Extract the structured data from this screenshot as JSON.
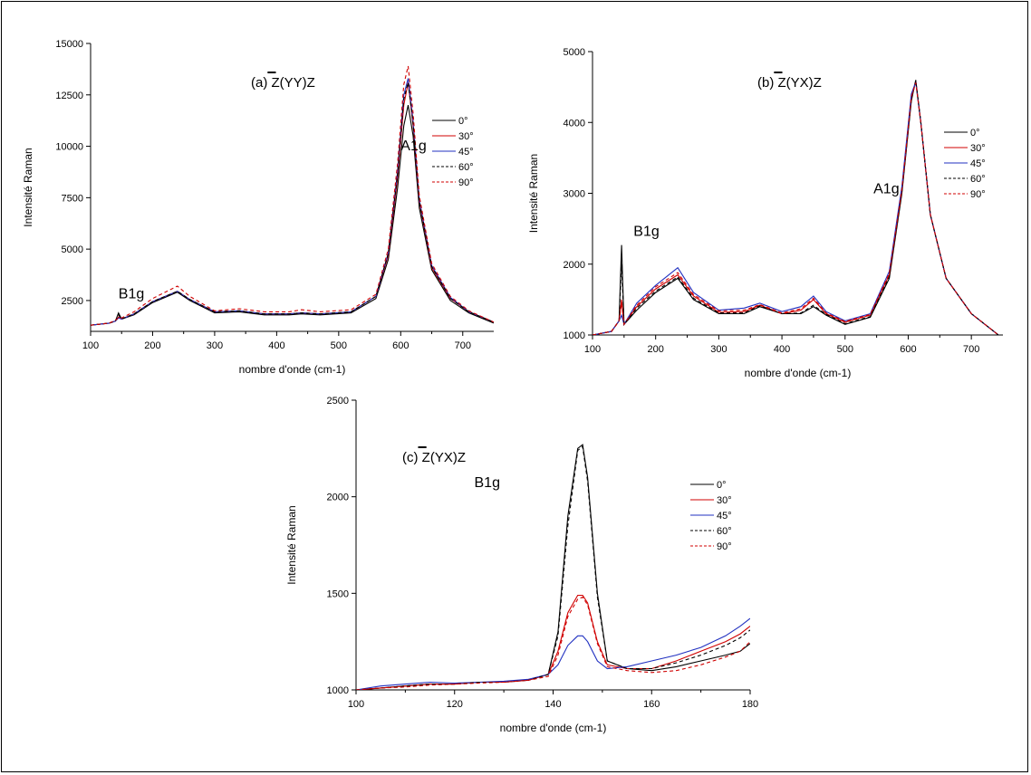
{
  "colors": {
    "0deg": "#000000",
    "30deg": "#d00000",
    "45deg": "#2030c0",
    "60deg": "#000000",
    "90deg": "#d00000"
  },
  "chart_data": [
    {
      "type": "line",
      "title_prefix": "(a) ",
      "title_main": "Z(YY)Z",
      "title_overbar_char": "Z",
      "xlabel": "nombre d'onde (cm-1)",
      "ylabel": "Intensité Raman",
      "xlim": [
        100,
        750
      ],
      "ylim": [
        1000,
        15000
      ],
      "xticks": [
        100,
        200,
        300,
        400,
        500,
        600,
        700
      ],
      "yticks": [
        2500,
        5000,
        7500,
        10000,
        12500,
        15000
      ],
      "peak_labels": [
        {
          "text": "B1g",
          "x": 145,
          "y": 2600
        },
        {
          "text": "A1g",
          "x": 600,
          "y": 9800
        }
      ],
      "legend": [
        "0°",
        "30°",
        "45°",
        "60°",
        "90°"
      ],
      "series": [
        {
          "name": "0°",
          "style": "solid",
          "color": "#000000",
          "x": [
            100,
            130,
            140,
            145,
            150,
            170,
            200,
            240,
            260,
            300,
            340,
            380,
            420,
            440,
            470,
            520,
            560,
            580,
            595,
            605,
            612,
            620,
            630,
            650,
            680,
            710,
            750
          ],
          "y": [
            1300,
            1400,
            1500,
            1900,
            1600,
            1800,
            2400,
            2900,
            2500,
            1900,
            1950,
            1800,
            1800,
            1850,
            1800,
            1900,
            2600,
            4500,
            8000,
            11000,
            12000,
            10500,
            7000,
            4000,
            2500,
            1900,
            1400
          ]
        },
        {
          "name": "30°",
          "style": "solid",
          "color": "#d00000",
          "x": [
            100,
            130,
            140,
            145,
            150,
            170,
            200,
            240,
            260,
            300,
            340,
            380,
            420,
            440,
            470,
            520,
            560,
            580,
            595,
            605,
            612,
            620,
            630,
            650,
            680,
            710,
            750
          ],
          "y": [
            1300,
            1400,
            1500,
            1700,
            1600,
            1850,
            2450,
            2950,
            2550,
            1950,
            2000,
            1850,
            1850,
            1900,
            1850,
            1950,
            2700,
            4700,
            8500,
            12000,
            13100,
            11000,
            7300,
            4100,
            2600,
            1950,
            1450
          ]
        },
        {
          "name": "45°",
          "style": "solid",
          "color": "#2030c0",
          "x": [
            100,
            130,
            140,
            145,
            150,
            170,
            200,
            240,
            260,
            300,
            340,
            380,
            420,
            440,
            470,
            520,
            560,
            580,
            595,
            605,
            612,
            620,
            630,
            650,
            680,
            710,
            750
          ],
          "y": [
            1300,
            1400,
            1500,
            1650,
            1600,
            1850,
            2450,
            2950,
            2550,
            1950,
            2000,
            1850,
            1850,
            1900,
            1850,
            1950,
            2700,
            4800,
            8800,
            12500,
            13300,
            11200,
            7400,
            4200,
            2650,
            1950,
            1450
          ]
        },
        {
          "name": "60°",
          "style": "dashed",
          "color": "#000000",
          "x": [
            100,
            130,
            140,
            145,
            150,
            170,
            200,
            240,
            260,
            300,
            340,
            380,
            420,
            440,
            470,
            520,
            560,
            580,
            595,
            605,
            612,
            620,
            630,
            650,
            680,
            710,
            750
          ],
          "y": [
            1300,
            1400,
            1500,
            1800,
            1600,
            1850,
            2450,
            2950,
            2550,
            1950,
            2000,
            1850,
            1850,
            1900,
            1850,
            1950,
            2700,
            4800,
            8700,
            12300,
            13100,
            11100,
            7350,
            4150,
            2600,
            1950,
            1450
          ]
        },
        {
          "name": "90°",
          "style": "dashed",
          "color": "#d00000",
          "x": [
            100,
            130,
            140,
            145,
            150,
            170,
            200,
            240,
            260,
            300,
            340,
            380,
            420,
            440,
            470,
            520,
            560,
            580,
            595,
            605,
            612,
            620,
            630,
            650,
            680,
            710,
            750
          ],
          "y": [
            1300,
            1400,
            1550,
            1650,
            1650,
            1950,
            2600,
            3200,
            2700,
            2000,
            2100,
            1950,
            1950,
            2050,
            1950,
            2050,
            2800,
            5000,
            9200,
            13000,
            13900,
            11600,
            7600,
            4300,
            2700,
            2000,
            1450
          ]
        }
      ]
    },
    {
      "type": "line",
      "title_prefix": "(b) ",
      "title_main": "Z(YX)Z",
      "title_overbar_char": "Z",
      "xlabel": "nombre d'onde (cm-1)",
      "ylabel": "Intensité Raman",
      "xlim": [
        100,
        750
      ],
      "ylim": [
        1000,
        5000
      ],
      "xticks": [
        100,
        200,
        300,
        400,
        500,
        600,
        700
      ],
      "yticks": [
        1000,
        2000,
        3000,
        4000,
        5000
      ],
      "peak_labels": [
        {
          "text": "B1g",
          "x": 165,
          "y": 2400
        },
        {
          "text": "A1g",
          "x": 545,
          "y": 3000
        }
      ],
      "legend": [
        "0°",
        "30°",
        "45°",
        "60°",
        "90°"
      ],
      "series": [
        {
          "name": "0°",
          "style": "solid",
          "color": "#000000",
          "x": [
            100,
            130,
            142,
            146,
            150,
            170,
            200,
            235,
            260,
            300,
            340,
            365,
            400,
            430,
            450,
            470,
            500,
            540,
            570,
            590,
            605,
            612,
            620,
            635,
            660,
            700,
            750
          ],
          "y": [
            1000,
            1050,
            1200,
            2270,
            1150,
            1350,
            1600,
            1800,
            1500,
            1300,
            1300,
            1400,
            1300,
            1300,
            1400,
            1280,
            1150,
            1250,
            1800,
            3000,
            4300,
            4600,
            4000,
            2700,
            1800,
            1300,
            950
          ]
        },
        {
          "name": "30°",
          "style": "solid",
          "color": "#d00000",
          "x": [
            100,
            130,
            142,
            146,
            150,
            170,
            200,
            235,
            260,
            300,
            340,
            365,
            400,
            430,
            450,
            470,
            500,
            540,
            570,
            590,
            605,
            612,
            620,
            635,
            660,
            700,
            750
          ],
          "y": [
            1000,
            1050,
            1200,
            1500,
            1150,
            1400,
            1650,
            1850,
            1550,
            1320,
            1330,
            1420,
            1300,
            1350,
            1500,
            1300,
            1180,
            1280,
            1850,
            3050,
            4350,
            4580,
            4000,
            2700,
            1800,
            1300,
            950
          ]
        },
        {
          "name": "45°",
          "style": "solid",
          "color": "#2030c0",
          "x": [
            100,
            130,
            142,
            146,
            150,
            170,
            200,
            235,
            260,
            300,
            340,
            365,
            400,
            430,
            450,
            470,
            500,
            540,
            570,
            590,
            605,
            612,
            620,
            635,
            660,
            700,
            750
          ],
          "y": [
            1000,
            1050,
            1200,
            1280,
            1150,
            1450,
            1700,
            1950,
            1600,
            1350,
            1380,
            1450,
            1330,
            1400,
            1550,
            1330,
            1200,
            1300,
            1900,
            3100,
            4400,
            4570,
            4000,
            2700,
            1800,
            1300,
            950
          ]
        },
        {
          "name": "60°",
          "style": "dashed",
          "color": "#000000",
          "x": [
            100,
            130,
            142,
            146,
            150,
            170,
            200,
            235,
            260,
            300,
            340,
            365,
            400,
            430,
            450,
            470,
            500,
            540,
            570,
            590,
            605,
            612,
            620,
            635,
            660,
            700,
            750
          ],
          "y": [
            1000,
            1050,
            1200,
            2000,
            1150,
            1380,
            1620,
            1820,
            1520,
            1310,
            1310,
            1410,
            1300,
            1310,
            1420,
            1290,
            1160,
            1260,
            1820,
            3020,
            4320,
            4590,
            4000,
            2700,
            1800,
            1300,
            950
          ]
        },
        {
          "name": "90°",
          "style": "dashed",
          "color": "#d00000",
          "x": [
            100,
            130,
            142,
            146,
            150,
            170,
            200,
            235,
            260,
            300,
            340,
            365,
            400,
            430,
            450,
            470,
            500,
            540,
            570,
            590,
            605,
            612,
            620,
            635,
            660,
            700,
            750
          ],
          "y": [
            1000,
            1050,
            1200,
            1450,
            1150,
            1420,
            1680,
            1880,
            1570,
            1340,
            1350,
            1430,
            1310,
            1370,
            1520,
            1310,
            1190,
            1290,
            1870,
            3060,
            4360,
            4560,
            4000,
            2700,
            1800,
            1300,
            950
          ]
        }
      ]
    },
    {
      "type": "line",
      "title_prefix": "(c) ",
      "title_main": "Z(YX)Z",
      "title_overbar_char": "Z",
      "xlabel": "nombre d'onde (cm-1)",
      "ylabel": "Intensité Raman",
      "xlim": [
        100,
        180
      ],
      "ylim": [
        1000,
        2500
      ],
      "xticks": [
        100,
        120,
        140,
        160,
        180
      ],
      "yticks": [
        1000,
        1500,
        2000,
        2500
      ],
      "peak_labels": [
        {
          "text": "B1g",
          "x": 124,
          "y": 2050
        }
      ],
      "legend": [
        "0°",
        "30°",
        "45°",
        "60°",
        "90°"
      ],
      "series": [
        {
          "name": "0°",
          "style": "solid",
          "color": "#000000",
          "x": [
            100,
            105,
            110,
            115,
            120,
            125,
            130,
            135,
            139,
            141,
            143,
            145,
            146,
            147,
            149,
            151,
            155,
            160,
            165,
            170,
            175,
            178,
            180
          ],
          "y": [
            1000,
            1010,
            1020,
            1030,
            1030,
            1040,
            1040,
            1050,
            1080,
            1300,
            1900,
            2250,
            2270,
            2100,
            1500,
            1150,
            1110,
            1100,
            1120,
            1150,
            1180,
            1200,
            1240
          ]
        },
        {
          "name": "30°",
          "style": "solid",
          "color": "#d00000",
          "x": [
            100,
            105,
            110,
            115,
            120,
            125,
            130,
            135,
            139,
            141,
            143,
            145,
            146,
            147,
            149,
            151,
            155,
            160,
            165,
            170,
            175,
            178,
            180
          ],
          "y": [
            1000,
            1010,
            1020,
            1030,
            1030,
            1040,
            1040,
            1050,
            1080,
            1200,
            1400,
            1490,
            1490,
            1450,
            1250,
            1130,
            1110,
            1110,
            1150,
            1200,
            1250,
            1290,
            1330
          ]
        },
        {
          "name": "45°",
          "style": "solid",
          "color": "#2030c0",
          "x": [
            100,
            105,
            110,
            115,
            120,
            125,
            130,
            135,
            139,
            141,
            143,
            145,
            146,
            147,
            149,
            151,
            155,
            160,
            165,
            170,
            175,
            178,
            180
          ],
          "y": [
            1000,
            1020,
            1030,
            1040,
            1035,
            1040,
            1045,
            1055,
            1080,
            1130,
            1230,
            1280,
            1280,
            1250,
            1150,
            1110,
            1120,
            1150,
            1180,
            1220,
            1280,
            1330,
            1370
          ]
        },
        {
          "name": "60°",
          "style": "dashed",
          "color": "#000000",
          "x": [
            100,
            105,
            110,
            115,
            120,
            125,
            130,
            135,
            139,
            141,
            143,
            145,
            146,
            147,
            149,
            151,
            155,
            160,
            165,
            170,
            175,
            178,
            180
          ],
          "y": [
            1000,
            1010,
            1020,
            1030,
            1030,
            1040,
            1040,
            1050,
            1080,
            1280,
            1850,
            2240,
            2260,
            2080,
            1480,
            1150,
            1110,
            1110,
            1140,
            1180,
            1230,
            1270,
            1310
          ]
        },
        {
          "name": "90°",
          "style": "dashed",
          "color": "#d00000",
          "x": [
            100,
            105,
            110,
            115,
            120,
            125,
            130,
            135,
            139,
            141,
            143,
            145,
            146,
            147,
            149,
            151,
            155,
            160,
            165,
            170,
            175,
            178,
            180
          ],
          "y": [
            1000,
            1010,
            1015,
            1025,
            1030,
            1035,
            1040,
            1050,
            1070,
            1180,
            1380,
            1470,
            1480,
            1440,
            1240,
            1120,
            1100,
            1090,
            1100,
            1130,
            1170,
            1200,
            1250
          ]
        }
      ]
    }
  ]
}
